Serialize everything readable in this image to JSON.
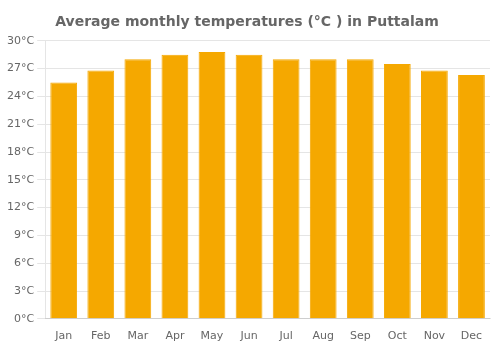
{
  "chart_data": {
    "type": "bar",
    "title": "Average monthly temperatures (°C ) in Puttalam",
    "categories": [
      "Jan",
      "Feb",
      "Mar",
      "Apr",
      "May",
      "Jun",
      "Jul",
      "Aug",
      "Sep",
      "Oct",
      "Nov",
      "Dec"
    ],
    "values": [
      25.5,
      26.8,
      28.0,
      28.5,
      28.8,
      28.5,
      28.0,
      28.0,
      28.0,
      27.5,
      26.8,
      26.3
    ],
    "color": "#F5A800",
    "ylim": [
      0,
      30
    ],
    "yticks": [
      {
        "value": 0,
        "label": "0°C"
      },
      {
        "value": 3,
        "label": "3°C"
      },
      {
        "value": 6,
        "label": "6°C"
      },
      {
        "value": 9,
        "label": "9°C"
      },
      {
        "value": 12,
        "label": "12°C"
      },
      {
        "value": 15,
        "label": "15°C"
      },
      {
        "value": 18,
        "label": "18°C"
      },
      {
        "value": 21,
        "label": "21°C"
      },
      {
        "value": 24,
        "label": "24°C"
      },
      {
        "value": 27,
        "label": "27°C"
      },
      {
        "value": 30,
        "label": "30°C"
      }
    ],
    "grid": true
  }
}
